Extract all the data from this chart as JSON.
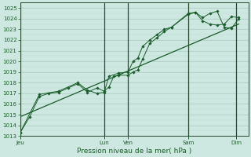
{
  "bg_color": "#cce8e0",
  "grid_color_major": "#a8c8c0",
  "grid_color_minor": "#bcd8d0",
  "line_color": "#1a5c2a",
  "xlabel": "Pression niveau de la mer( hPa )",
  "ylim": [
    1013,
    1025.5
  ],
  "yticks": [
    1013,
    1014,
    1015,
    1016,
    1017,
    1018,
    1019,
    1020,
    1021,
    1022,
    1023,
    1024,
    1025
  ],
  "day_labels": [
    "Jeu",
    "Lun",
    "Ven",
    "Sam",
    "Dim"
  ],
  "day_positions": [
    0.0,
    3.5,
    4.5,
    7.0,
    9.0
  ],
  "vline_positions": [
    0.0,
    3.5,
    4.5,
    7.0,
    9.0
  ],
  "xlim": [
    0,
    9.5
  ],
  "series1_x": [
    0.0,
    0.4,
    0.8,
    1.2,
    1.6,
    2.0,
    2.4,
    2.8,
    3.2,
    3.5,
    3.7,
    3.9,
    4.1,
    4.5,
    4.7,
    4.9,
    5.1,
    5.4,
    5.7,
    6.0,
    6.3,
    7.0,
    7.3,
    7.6,
    7.9,
    8.2,
    8.5,
    8.8,
    9.1
  ],
  "series1_y": [
    1013.3,
    1014.8,
    1016.7,
    1017.0,
    1017.1,
    1017.5,
    1017.9,
    1017.1,
    1017.5,
    1017.2,
    1017.6,
    1018.6,
    1018.7,
    1018.7,
    1019.0,
    1019.2,
    1020.2,
    1021.7,
    1022.2,
    1022.8,
    1023.2,
    1024.4,
    1024.6,
    1024.1,
    1024.5,
    1024.7,
    1023.2,
    1023.1,
    1024.0
  ],
  "series2_x": [
    0.0,
    0.8,
    1.6,
    2.4,
    2.8,
    3.2,
    3.5,
    3.7,
    4.1,
    4.5,
    4.7,
    4.9,
    5.1,
    5.4,
    5.7,
    6.0,
    6.3,
    7.0,
    7.3,
    7.6,
    7.9,
    8.2,
    8.5,
    8.8,
    9.1
  ],
  "series2_y": [
    1013.3,
    1016.9,
    1017.2,
    1018.0,
    1017.3,
    1017.0,
    1017.1,
    1018.6,
    1018.9,
    1019.0,
    1020.0,
    1020.3,
    1021.4,
    1022.0,
    1022.5,
    1023.0,
    1023.2,
    1024.5,
    1024.6,
    1023.8,
    1023.5,
    1023.4,
    1023.5,
    1024.2,
    1024.1
  ],
  "trend_x": [
    0.0,
    9.1
  ],
  "trend_y": [
    1014.8,
    1023.5
  ],
  "ylabel_fontsize": 5.0,
  "xlabel_fontsize": 6.5,
  "tick_fontsize": 5.0
}
